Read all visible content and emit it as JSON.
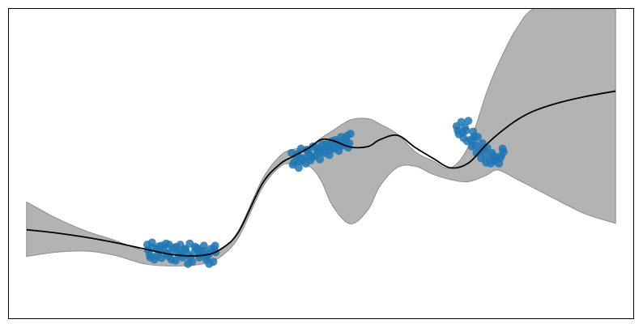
{
  "chart_data": {
    "type": "scatter",
    "title": "",
    "xlabel": "",
    "ylabel": "",
    "grid": false,
    "xlim": [
      -0.3,
      10.3
    ],
    "ylim": [
      -2.9,
      2.9
    ],
    "colors": {
      "points": "#1f77b4",
      "mean": "#000000",
      "band": "#b3b3b3",
      "band_edge": "#8c8c8c"
    },
    "series": [
      {
        "kind": "confidence-band",
        "x": [
          0,
          0.5,
          1,
          1.5,
          2,
          2.5,
          3,
          3.3,
          3.6,
          4,
          4.3,
          4.5,
          4.8,
          5,
          5.2,
          5.5,
          5.8,
          6,
          6.3,
          6.6,
          6.9,
          7.2,
          7.5,
          7.8,
          8,
          8.3,
          8.6,
          9,
          9.5,
          10
        ],
        "upper": [
          -0.72,
          -1.02,
          -1.26,
          -1.44,
          -1.64,
          -1.76,
          -1.72,
          -1.62,
          -1.25,
          -0.3,
          0.14,
          0.26,
          0.32,
          0.48,
          0.62,
          0.82,
          0.84,
          0.74,
          0.55,
          0.22,
          0.05,
          -0.08,
          0.32,
          1.3,
          1.85,
          2.5,
          2.9,
          2.9,
          2.9,
          2.9
        ],
        "lower": [
          -1.74,
          -1.66,
          -1.64,
          -1.72,
          -1.88,
          -1.92,
          -1.88,
          -1.74,
          -1.38,
          -0.46,
          -0.06,
          0.0,
          -0.05,
          -0.32,
          -0.8,
          -1.13,
          -0.86,
          -0.42,
          -0.07,
          -0.05,
          -0.2,
          -0.3,
          -0.34,
          -0.22,
          -0.12,
          -0.28,
          -0.45,
          -0.68,
          -0.95,
          -1.12
        ]
      },
      {
        "kind": "mean-line",
        "x": [
          0,
          0.5,
          1,
          1.5,
          2,
          2.5,
          3,
          3.3,
          3.6,
          4,
          4.3,
          4.5,
          4.8,
          5,
          5.2,
          5.5,
          5.8,
          6,
          6.3,
          6.6,
          6.9,
          7.2,
          7.5,
          7.8,
          8,
          8.3,
          8.6,
          9,
          9.5,
          10
        ],
        "y": [
          -1.24,
          -1.3,
          -1.38,
          -1.48,
          -1.6,
          -1.71,
          -1.72,
          -1.6,
          -1.28,
          -0.38,
          -0.01,
          0.12,
          0.3,
          0.45,
          0.43,
          0.31,
          0.32,
          0.45,
          0.53,
          0.3,
          0.1,
          -0.08,
          0.01,
          0.35,
          0.55,
          0.8,
          0.98,
          1.13,
          1.26,
          1.36
        ]
      },
      {
        "kind": "observations",
        "x": [
          2.05,
          2.09,
          2.13,
          2.17,
          2.21,
          2.25,
          2.29,
          2.33,
          2.37,
          2.41,
          2.45,
          2.49,
          2.53,
          2.57,
          2.61,
          2.65,
          2.69,
          2.73,
          2.77,
          2.81,
          2.85,
          2.89,
          2.93,
          2.97,
          3.01,
          3.05,
          3.09,
          3.13,
          3.17,
          3.21,
          2.06,
          2.14,
          2.22,
          2.3,
          2.38,
          2.46,
          2.54,
          2.62,
          2.7,
          2.78,
          2.86,
          2.94,
          3.02,
          3.1,
          3.18,
          2.1,
          2.26,
          2.42,
          2.58,
          2.74,
          2.9,
          3.06,
          3.2,
          4.5,
          4.54,
          4.58,
          4.62,
          4.66,
          4.7,
          4.74,
          4.78,
          4.82,
          4.86,
          4.9,
          4.94,
          4.98,
          5.02,
          5.06,
          5.1,
          5.14,
          5.18,
          5.22,
          5.26,
          5.3,
          5.34,
          5.38,
          5.42,
          5.46,
          5.5,
          4.52,
          4.6,
          4.68,
          4.76,
          4.84,
          4.92,
          5.0,
          5.08,
          5.16,
          5.24,
          5.32,
          5.4,
          5.48,
          4.64,
          4.8,
          4.96,
          5.12,
          5.28,
          5.44,
          7.3,
          7.34,
          7.38,
          7.42,
          7.46,
          7.5,
          7.54,
          7.58,
          7.62,
          7.66,
          7.7,
          7.74,
          7.78,
          7.82,
          7.86,
          7.9,
          7.94,
          7.98,
          8.02,
          8.06,
          8.1,
          7.32,
          7.4,
          7.48,
          7.56,
          7.64,
          7.72,
          7.8,
          7.88,
          7.96,
          8.04,
          7.44,
          7.6,
          7.76,
          7.92,
          8.08
        ],
        "y": [
          -1.52,
          -1.71,
          -1.48,
          -1.8,
          -1.6,
          -1.55,
          -1.77,
          -1.62,
          -1.5,
          -1.74,
          -1.66,
          -1.58,
          -1.82,
          -1.63,
          -1.52,
          -1.76,
          -1.6,
          -1.7,
          -1.5,
          -1.84,
          -1.66,
          -1.58,
          -1.76,
          -1.64,
          -1.54,
          -1.8,
          -1.7,
          -1.6,
          -1.84,
          -1.66,
          -1.62,
          -1.58,
          -1.72,
          -1.54,
          -1.68,
          -1.8,
          -1.56,
          -1.7,
          -1.62,
          -1.76,
          -1.56,
          -1.7,
          -1.64,
          -1.88,
          -1.6,
          -1.76,
          -1.64,
          -1.52,
          -1.7,
          -1.88,
          -1.6,
          -1.74,
          -1.54,
          0.2,
          0.02,
          0.14,
          -0.08,
          0.28,
          0.1,
          0.0,
          0.22,
          0.06,
          0.32,
          0.14,
          0.24,
          0.08,
          0.36,
          0.2,
          0.3,
          0.16,
          0.42,
          0.28,
          0.38,
          0.24,
          0.5,
          0.34,
          0.44,
          0.3,
          0.56,
          -0.02,
          0.18,
          0.08,
          0.26,
          0.12,
          0.3,
          0.22,
          0.36,
          0.26,
          0.44,
          0.34,
          0.46,
          0.38,
          0.04,
          0.16,
          0.28,
          0.34,
          0.4,
          0.52,
          0.7,
          0.55,
          0.78,
          0.48,
          0.62,
          0.8,
          0.45,
          0.6,
          0.35,
          0.5,
          0.25,
          0.38,
          0.18,
          0.3,
          0.08,
          0.2,
          0.05,
          0.12,
          0.0,
          0.15,
          0.22,
          0.62,
          0.58,
          0.42,
          0.32,
          0.2,
          0.1,
          0.02,
          0.0,
          0.08,
          0.1,
          0.68,
          0.5,
          0.28,
          0.14,
          0.28
        ]
      }
    ]
  }
}
